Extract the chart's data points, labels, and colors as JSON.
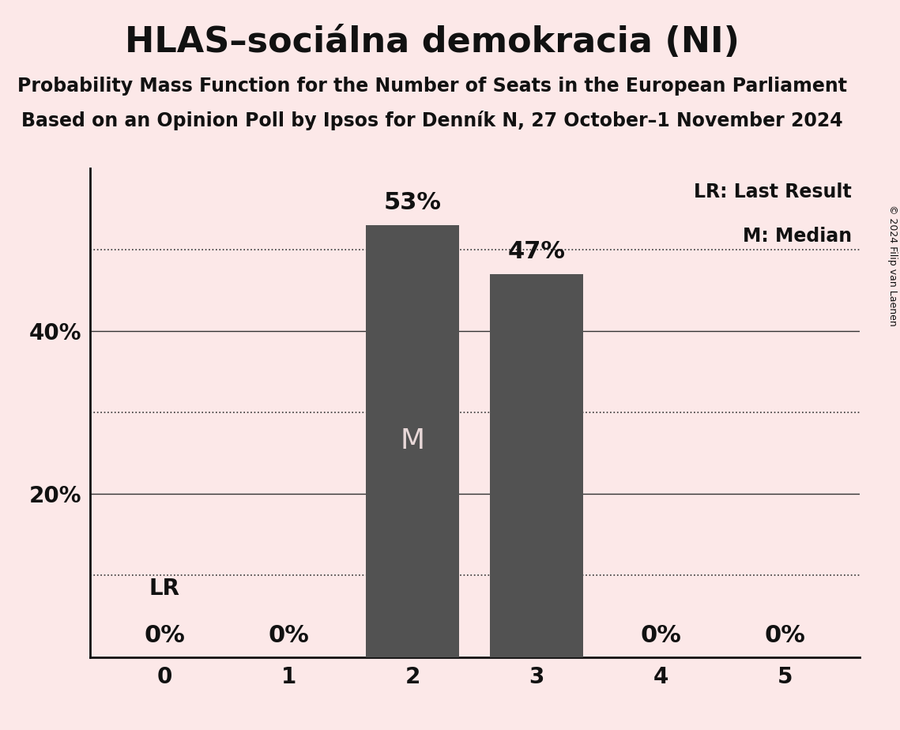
{
  "title": "HLAS–sociálna demokracia (NI)",
  "subtitle1": "Probability Mass Function for the Number of Seats in the European Parliament",
  "subtitle2": "Based on an Opinion Poll by Ipsos for Denník N, 27 October–1 November 2024",
  "copyright": "© 2024 Filip van Laenen",
  "seats": [
    0,
    1,
    2,
    3,
    4,
    5
  ],
  "probabilities": [
    0.0,
    0.0,
    0.53,
    0.47,
    0.0,
    0.0
  ],
  "bar_labels": [
    "0%",
    "0%",
    "53%",
    "47%",
    "0%",
    "0%"
  ],
  "bar_color": "#525252",
  "background_color": "#fce8e8",
  "median_seat": 2,
  "median_label": "M",
  "lr_seat": 0,
  "lr_label": "LR",
  "legend_lr": "LR: Last Result",
  "legend_m": "M: Median",
  "ylim": [
    0,
    0.6
  ],
  "grid_ticks": [
    0.1,
    0.3,
    0.5
  ],
  "solid_ticks": [
    0.2,
    0.4
  ],
  "title_fontsize": 32,
  "subtitle_fontsize": 17,
  "axis_tick_fontsize": 20,
  "bar_label_fontsize": 22,
  "bar_label_zero_fontsize": 22,
  "m_label_fontsize": 26,
  "lr_label_fontsize": 20,
  "legend_fontsize": 17,
  "copyright_fontsize": 9,
  "ytick_labels_shown": [
    "20%",
    "40%"
  ],
  "ytick_positions_shown": [
    0.2,
    0.4
  ]
}
